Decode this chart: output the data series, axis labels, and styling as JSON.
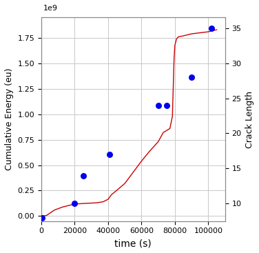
{
  "blue_dots_x": [
    500,
    20000,
    25000,
    41000,
    70000,
    75000,
    90000,
    102000
  ],
  "blue_dots_crack": [
    8,
    10,
    14,
    17,
    24,
    24,
    28,
    35
  ],
  "red_line_x": [
    0,
    3000,
    8000,
    13000,
    18000,
    22000,
    27000,
    33000,
    37000,
    40000,
    42000,
    45000,
    50000,
    55000,
    60000,
    65000,
    70000,
    73000,
    75000,
    77000,
    78500,
    79500,
    80000,
    81000,
    82000,
    85000,
    90000,
    95000,
    100000,
    105000
  ],
  "red_line_energy": [
    0,
    5000000.0,
    60000000.0,
    90000000.0,
    110000000.0,
    120000000.0,
    125000000.0,
    130000000.0,
    140000000.0,
    165000000.0,
    210000000.0,
    250000000.0,
    320000000.0,
    430000000.0,
    540000000.0,
    640000000.0,
    730000000.0,
    820000000.0,
    840000000.0,
    860000000.0,
    980000000.0,
    1550000000.0,
    1680000000.0,
    1740000000.0,
    1760000000.0,
    1770000000.0,
    1790000000.0,
    1800000000.0,
    1810000000.0,
    1830000000.0
  ],
  "ylabel_left": "Cumulative Energy (eu)",
  "ylabel_right": "Crack Length",
  "xlabel": "time (s)",
  "xlim": [
    0,
    110000
  ],
  "ylim_left": [
    -50000000.0,
    1950000000.0
  ],
  "ylim_right": [
    7.5,
    36.5
  ],
  "yticks_left": [
    0,
    250000000.0,
    500000000.0,
    750000000.0,
    1000000000.0,
    1250000000.0,
    1500000000.0,
    1750000000.0
  ],
  "yticks_left_labels": [
    "0.00",
    "0.25",
    "0.50",
    "0.75",
    "1.00",
    "1.25",
    "1.50",
    "1.75"
  ],
  "yticks_right": [
    10,
    15,
    20,
    25,
    30,
    35
  ],
  "xticks": [
    0,
    20000,
    40000,
    60000,
    80000,
    100000
  ],
  "xtick_labels": [
    "0",
    "20000",
    "40000",
    "60000",
    "80000",
    "100000"
  ],
  "line_color": "#cc0000",
  "dot_color": "#0000ee",
  "dot_size": 30,
  "grid_color": "#c8c8c8",
  "background_color": "#ffffff",
  "figsize": [
    3.76,
    3.67
  ],
  "dpi": 100
}
